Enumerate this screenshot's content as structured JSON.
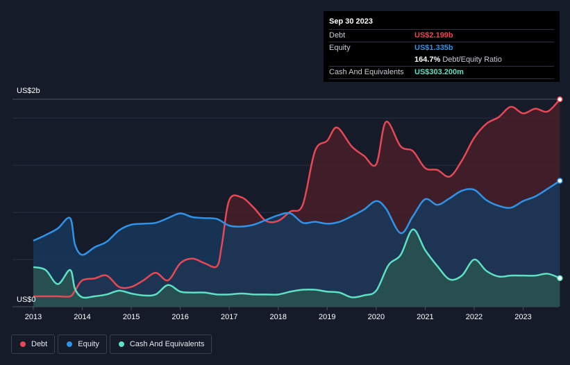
{
  "chart_data": {
    "type": "area",
    "y_top_label": "US$2b",
    "y_bottom_label": "US$0",
    "ylim": [
      0,
      2.2
    ],
    "xlim": [
      2013,
      2023.75
    ],
    "x_ticks": [
      "2013",
      "2014",
      "2015",
      "2016",
      "2017",
      "2018",
      "2019",
      "2020",
      "2021",
      "2022",
      "2023"
    ],
    "series": [
      {
        "name": "Debt",
        "color": "#e84855",
        "fill": "#4a1f29",
        "points": [
          [
            2013.0,
            0.11
          ],
          [
            2013.25,
            0.11
          ],
          [
            2013.5,
            0.11
          ],
          [
            2013.75,
            0.11
          ],
          [
            2013.85,
            0.17
          ],
          [
            2014.0,
            0.28
          ],
          [
            2014.25,
            0.3
          ],
          [
            2014.5,
            0.33
          ],
          [
            2014.75,
            0.21
          ],
          [
            2015.0,
            0.21
          ],
          [
            2015.25,
            0.28
          ],
          [
            2015.5,
            0.36
          ],
          [
            2015.75,
            0.28
          ],
          [
            2016.0,
            0.46
          ],
          [
            2016.25,
            0.51
          ],
          [
            2016.5,
            0.46
          ],
          [
            2016.75,
            0.43
          ],
          [
            2016.85,
            0.66
          ],
          [
            2017.0,
            1.13
          ],
          [
            2017.25,
            1.16
          ],
          [
            2017.5,
            1.05
          ],
          [
            2017.75,
            0.91
          ],
          [
            2018.0,
            0.91
          ],
          [
            2018.25,
            1.01
          ],
          [
            2018.5,
            1.08
          ],
          [
            2018.75,
            1.65
          ],
          [
            2019.0,
            1.76
          ],
          [
            2019.2,
            1.9
          ],
          [
            2019.5,
            1.7
          ],
          [
            2019.75,
            1.6
          ],
          [
            2020.0,
            1.51
          ],
          [
            2020.2,
            1.96
          ],
          [
            2020.5,
            1.7
          ],
          [
            2020.75,
            1.65
          ],
          [
            2021.0,
            1.47
          ],
          [
            2021.25,
            1.45
          ],
          [
            2021.5,
            1.38
          ],
          [
            2021.75,
            1.55
          ],
          [
            2022.0,
            1.79
          ],
          [
            2022.25,
            1.94
          ],
          [
            2022.5,
            2.01
          ],
          [
            2022.75,
            2.12
          ],
          [
            2023.0,
            2.05
          ],
          [
            2023.25,
            2.1
          ],
          [
            2023.5,
            2.07
          ],
          [
            2023.75,
            2.199
          ]
        ]
      },
      {
        "name": "Equity",
        "color": "#2f94e8",
        "fill": "#173a5e",
        "points": [
          [
            2013.0,
            0.7
          ],
          [
            2013.25,
            0.76
          ],
          [
            2013.5,
            0.83
          ],
          [
            2013.75,
            0.94
          ],
          [
            2013.85,
            0.66
          ],
          [
            2014.0,
            0.55
          ],
          [
            2014.25,
            0.63
          ],
          [
            2014.5,
            0.69
          ],
          [
            2014.75,
            0.81
          ],
          [
            2015.0,
            0.87
          ],
          [
            2015.25,
            0.88
          ],
          [
            2015.5,
            0.89
          ],
          [
            2015.75,
            0.94
          ],
          [
            2016.0,
            0.99
          ],
          [
            2016.25,
            0.95
          ],
          [
            2016.5,
            0.94
          ],
          [
            2016.75,
            0.93
          ],
          [
            2017.0,
            0.86
          ],
          [
            2017.25,
            0.85
          ],
          [
            2017.5,
            0.87
          ],
          [
            2017.75,
            0.92
          ],
          [
            2018.0,
            0.97
          ],
          [
            2018.25,
            0.99
          ],
          [
            2018.5,
            0.89
          ],
          [
            2018.75,
            0.9
          ],
          [
            2019.0,
            0.88
          ],
          [
            2019.25,
            0.9
          ],
          [
            2019.5,
            0.96
          ],
          [
            2019.75,
            1.03
          ],
          [
            2020.0,
            1.12
          ],
          [
            2020.2,
            1.04
          ],
          [
            2020.5,
            0.78
          ],
          [
            2020.75,
            0.96
          ],
          [
            2021.0,
            1.14
          ],
          [
            2021.25,
            1.08
          ],
          [
            2021.5,
            1.15
          ],
          [
            2021.75,
            1.23
          ],
          [
            2022.0,
            1.24
          ],
          [
            2022.25,
            1.13
          ],
          [
            2022.5,
            1.07
          ],
          [
            2022.75,
            1.05
          ],
          [
            2023.0,
            1.12
          ],
          [
            2023.25,
            1.17
          ],
          [
            2023.5,
            1.25
          ],
          [
            2023.75,
            1.335
          ]
        ]
      },
      {
        "name": "Cash And Equivalents",
        "color": "#5ee0c4",
        "fill": "#2a5550",
        "points": [
          [
            2013.0,
            0.42
          ],
          [
            2013.25,
            0.39
          ],
          [
            2013.5,
            0.24
          ],
          [
            2013.75,
            0.39
          ],
          [
            2013.85,
            0.19
          ],
          [
            2014.0,
            0.1
          ],
          [
            2014.25,
            0.11
          ],
          [
            2014.5,
            0.13
          ],
          [
            2014.75,
            0.17
          ],
          [
            2015.0,
            0.14
          ],
          [
            2015.25,
            0.12
          ],
          [
            2015.5,
            0.13
          ],
          [
            2015.75,
            0.23
          ],
          [
            2016.0,
            0.16
          ],
          [
            2016.25,
            0.15
          ],
          [
            2016.5,
            0.15
          ],
          [
            2016.75,
            0.13
          ],
          [
            2017.0,
            0.13
          ],
          [
            2017.25,
            0.14
          ],
          [
            2017.5,
            0.13
          ],
          [
            2017.75,
            0.13
          ],
          [
            2018.0,
            0.13
          ],
          [
            2018.25,
            0.16
          ],
          [
            2018.5,
            0.18
          ],
          [
            2018.75,
            0.18
          ],
          [
            2019.0,
            0.16
          ],
          [
            2019.25,
            0.15
          ],
          [
            2019.5,
            0.1
          ],
          [
            2019.75,
            0.12
          ],
          [
            2020.0,
            0.17
          ],
          [
            2020.25,
            0.44
          ],
          [
            2020.5,
            0.55
          ],
          [
            2020.75,
            0.82
          ],
          [
            2021.0,
            0.6
          ],
          [
            2021.25,
            0.43
          ],
          [
            2021.5,
            0.29
          ],
          [
            2021.75,
            0.33
          ],
          [
            2022.0,
            0.5
          ],
          [
            2022.25,
            0.38
          ],
          [
            2022.5,
            0.32
          ],
          [
            2022.75,
            0.33
          ],
          [
            2023.0,
            0.33
          ],
          [
            2023.25,
            0.33
          ],
          [
            2023.5,
            0.35
          ],
          [
            2023.75,
            0.303
          ]
        ]
      }
    ]
  },
  "tooltip": {
    "date": "Sep 30 2023",
    "rows": [
      {
        "label": "Debt",
        "value": "US$2.199b",
        "color": "#e84855"
      },
      {
        "label": "Equity",
        "value": "US$1.335b",
        "color": "#2f94e8"
      }
    ],
    "ratio_value": "164.7%",
    "ratio_text": "Debt/Equity Ratio",
    "cash_label": "Cash And Equivalents",
    "cash_value": "US$303.200m",
    "cash_color": "#5ee0c4"
  },
  "legend": [
    {
      "label": "Debt",
      "color": "#e84855"
    },
    {
      "label": "Equity",
      "color": "#2f94e8"
    },
    {
      "label": "Cash And Equivalents",
      "color": "#5ee0c4"
    }
  ]
}
